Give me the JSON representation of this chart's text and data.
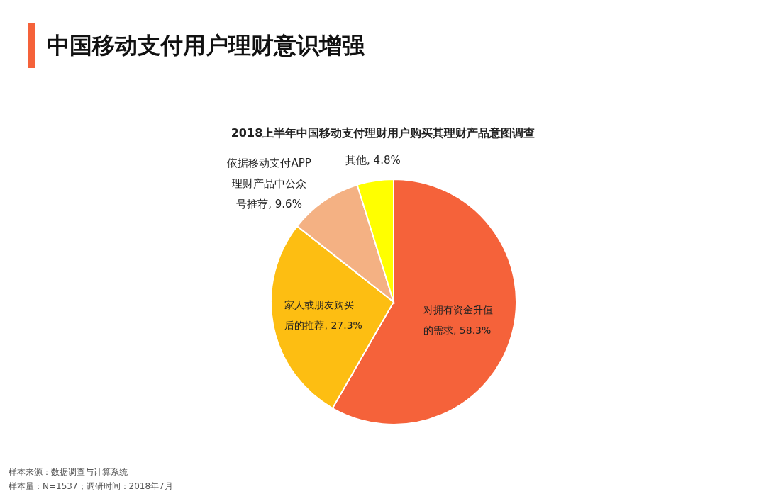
{
  "chart_data": {
    "type": "pie",
    "title": "中国移动支付用户理财意识增强",
    "subtitle": "2018上半年中国移动支付理财用户购买其理财产品意图调查",
    "categories": [
      "对拥有资金升值的需求",
      "家人或朋友购买后的推荐",
      "依据移动支付APP理财产品中公众号推荐",
      "其他"
    ],
    "values": [
      58.3,
      27.3,
      9.6,
      4.8
    ],
    "value_labels": [
      ", 58.3%",
      ", 27.3%",
      ", 9.6%",
      ", 4.8%"
    ],
    "legend": false,
    "colors": [
      "#f5623a",
      "#fdbe12",
      "#f4b183",
      "#ffff00"
    ],
    "annotations": [
      "样本来源：数据调查与计算系统",
      "样本量：N=1537；调研时间：2018年7月"
    ]
  }
}
